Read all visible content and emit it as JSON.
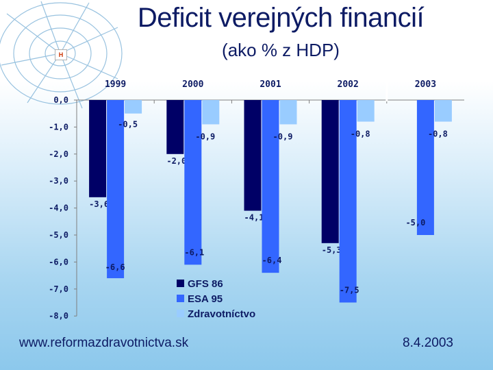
{
  "title": "Deficit verejných financií",
  "subtitle": "(ako % z HDP)",
  "footer": {
    "url": "www.reformazdravotnictva.sk",
    "date": "8.4.2003"
  },
  "logo_letter": "H",
  "colors": {
    "gfs": "#000066",
    "esa": "#3366ff",
    "zdr": "#99ccff",
    "text": "#0d1b64"
  },
  "chart_data": {
    "type": "bar",
    "categories": [
      "1999",
      "2000",
      "2001",
      "2002",
      "2003"
    ],
    "series": [
      {
        "name": "GFS 86",
        "values": [
          -3.6,
          -2.0,
          -4.1,
          -5.3,
          null
        ],
        "labels": [
          "-3,6",
          "-2,0",
          "-4,1",
          "-5,3",
          ""
        ]
      },
      {
        "name": "ESA 95",
        "values": [
          -6.6,
          -6.1,
          -6.4,
          -7.5,
          -5.0
        ],
        "labels": [
          "-6,6",
          "-6,1",
          "-6,4",
          "-7,5",
          "-5,0"
        ]
      },
      {
        "name": "Zdravotníctvo",
        "values": [
          -0.5,
          -0.9,
          -0.9,
          -0.8,
          -0.8
        ],
        "labels": [
          "-0,5",
          "-0,9",
          "-0,9",
          "-0,8",
          "-0,8"
        ]
      }
    ],
    "yticks": [
      "0,0",
      "-1,0",
      "-2,0",
      "-3,0",
      "-4,0",
      "-5,0",
      "-6,0",
      "-7,0",
      "-8,0"
    ],
    "ylim": [
      -8,
      0
    ],
    "legend": "bottom-center",
    "separator_before": "2003"
  }
}
